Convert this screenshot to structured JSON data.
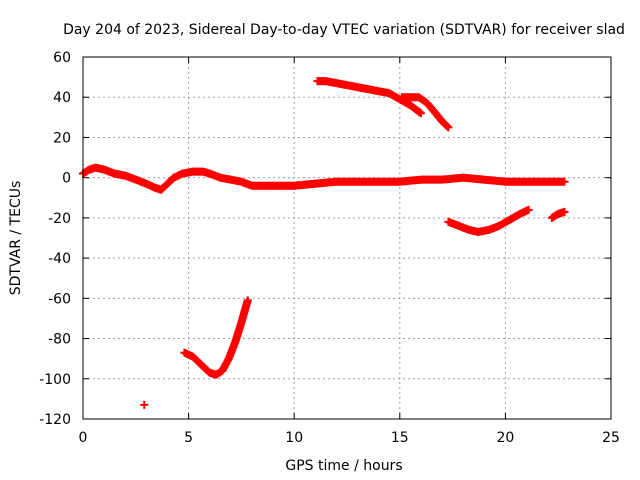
{
  "chart_data": {
    "type": "scatter",
    "title": "Day 204 of 2023, Sidereal Day-to-day VTEC variation (SDTVAR) for receiver slad",
    "xlabel": "GPS time / hours",
    "ylabel": "SDTVAR / TECUs",
    "xlim": [
      0,
      25
    ],
    "ylim": [
      -120,
      60
    ],
    "xticks": [
      "0",
      "5",
      "10",
      "15",
      "20",
      "25"
    ],
    "yticks": [
      "-120",
      "-100",
      "-80",
      "-60",
      "-40",
      "-20",
      "0",
      "20",
      "40",
      "60"
    ],
    "grid": true,
    "marker_color": "#ff0000",
    "series": [
      {
        "name": "main-track",
        "points": [
          [
            0.0,
            2
          ],
          [
            0.3,
            4
          ],
          [
            0.6,
            5
          ],
          [
            1.0,
            4
          ],
          [
            1.5,
            2
          ],
          [
            2.0,
            1
          ],
          [
            2.5,
            -1
          ],
          [
            3.0,
            -3
          ],
          [
            3.4,
            -5
          ],
          [
            3.7,
            -6
          ],
          [
            4.0,
            -3
          ],
          [
            4.3,
            0
          ],
          [
            4.7,
            2
          ],
          [
            5.2,
            3
          ],
          [
            5.7,
            3
          ],
          [
            6.0,
            2
          ],
          [
            6.5,
            0
          ],
          [
            7.0,
            -1
          ],
          [
            7.5,
            -2
          ],
          [
            8.0,
            -4
          ],
          [
            8.5,
            -4
          ],
          [
            9.0,
            -4
          ],
          [
            10.0,
            -4
          ],
          [
            11.0,
            -3
          ],
          [
            12.0,
            -2
          ],
          [
            13.0,
            -2
          ],
          [
            14.0,
            -2
          ],
          [
            15.0,
            -2
          ],
          [
            16.0,
            -1
          ],
          [
            17.0,
            -1
          ],
          [
            18.0,
            0
          ],
          [
            19.0,
            -1
          ],
          [
            20.0,
            -2
          ],
          [
            21.0,
            -2
          ],
          [
            22.0,
            -2
          ],
          [
            22.8,
            -2
          ]
        ]
      },
      {
        "name": "arc-top-left",
        "points": [
          [
            11.1,
            48
          ],
          [
            11.5,
            48
          ],
          [
            12.0,
            47
          ],
          [
            12.5,
            46
          ],
          [
            13.0,
            45
          ],
          [
            13.5,
            44
          ],
          [
            14.0,
            43
          ],
          [
            14.5,
            42
          ],
          [
            15.0,
            39
          ],
          [
            15.5,
            36
          ],
          [
            16.0,
            32
          ]
        ]
      },
      {
        "name": "arc-top-right",
        "points": [
          [
            15.1,
            40
          ],
          [
            15.5,
            40
          ],
          [
            15.9,
            40
          ],
          [
            16.3,
            37
          ],
          [
            16.7,
            32
          ],
          [
            17.0,
            28
          ],
          [
            17.3,
            25
          ]
        ]
      },
      {
        "name": "arc-mid-right",
        "points": [
          [
            17.3,
            -22
          ],
          [
            17.8,
            -24
          ],
          [
            18.3,
            -26
          ],
          [
            18.7,
            -27
          ],
          [
            19.2,
            -26
          ],
          [
            19.7,
            -24
          ],
          [
            20.2,
            -21
          ],
          [
            20.7,
            -18
          ],
          [
            21.1,
            -16
          ]
        ]
      },
      {
        "name": "arc-far-right",
        "points": [
          [
            22.2,
            -20
          ],
          [
            22.5,
            -18
          ],
          [
            22.8,
            -17
          ]
        ]
      },
      {
        "name": "arc-bottom",
        "points": [
          [
            4.8,
            -87
          ],
          [
            5.2,
            -89
          ],
          [
            5.6,
            -93
          ],
          [
            6.0,
            -97
          ],
          [
            6.3,
            -98
          ],
          [
            6.6,
            -96
          ],
          [
            6.9,
            -90
          ],
          [
            7.2,
            -82
          ],
          [
            7.5,
            -72
          ],
          [
            7.8,
            -61
          ]
        ]
      },
      {
        "name": "isolated-point",
        "points": [
          [
            2.9,
            -113
          ]
        ]
      }
    ]
  }
}
